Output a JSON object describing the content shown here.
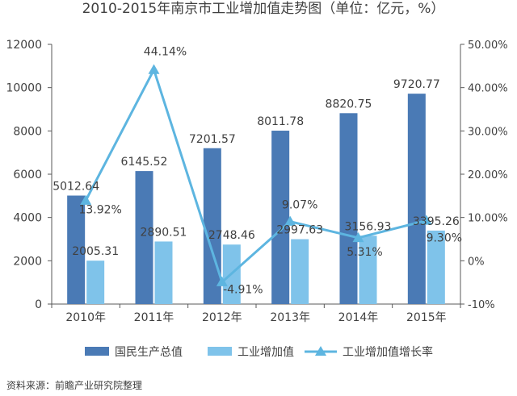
{
  "chart_data": {
    "type": "bar",
    "title": "2010-2015年南京市工业增加值走势图（单位：亿元，%）",
    "categories": [
      "2010年",
      "2011年",
      "2012年",
      "2013年",
      "2014年",
      "2015年"
    ],
    "series": [
      {
        "name": "国民生产总值",
        "type": "bar",
        "axis": "left",
        "values": [
          5012.64,
          6145.52,
          7201.57,
          8011.78,
          8820.75,
          9720.77
        ],
        "labels": [
          "5012.64",
          "6145.52",
          "7201.57",
          "8011.78",
          "8820.75",
          "9720.77"
        ]
      },
      {
        "name": "工业增加值",
        "type": "bar",
        "axis": "left",
        "values": [
          2005.31,
          2890.51,
          2748.46,
          2997.63,
          3156.93,
          3395.26
        ],
        "labels": [
          "2005.31",
          "2890.51",
          "2748.46",
          "2997.63",
          "3156.93",
          "3395.26"
        ]
      },
      {
        "name": "工业增加值增长率",
        "type": "line",
        "axis": "right",
        "values": [
          13.92,
          44.14,
          -4.91,
          9.07,
          5.31,
          9.3
        ],
        "labels": [
          "13.92%",
          "44.14%",
          "-4.91%",
          "9.07%",
          "5.31%",
          "9.30%"
        ]
      }
    ],
    "y_left": {
      "min": 0,
      "max": 12000,
      "ticks": [
        "0",
        "2000",
        "4000",
        "6000",
        "8000",
        "10000",
        "12000"
      ]
    },
    "y_right": {
      "min": -10,
      "max": 50,
      "ticks": [
        "-10%",
        "0%",
        "10.00%",
        "20.00%",
        "30.00%",
        "40.00%",
        "50.00%"
      ]
    },
    "legend_position": "bottom",
    "grid": false,
    "colors": {
      "gdp": "#4a7ab5",
      "industry": "#7fc3ea",
      "rate": "#5db5e0",
      "axis": "#595959",
      "text": "#404040"
    }
  },
  "source": "资料来源：前瞻产业研究院整理"
}
